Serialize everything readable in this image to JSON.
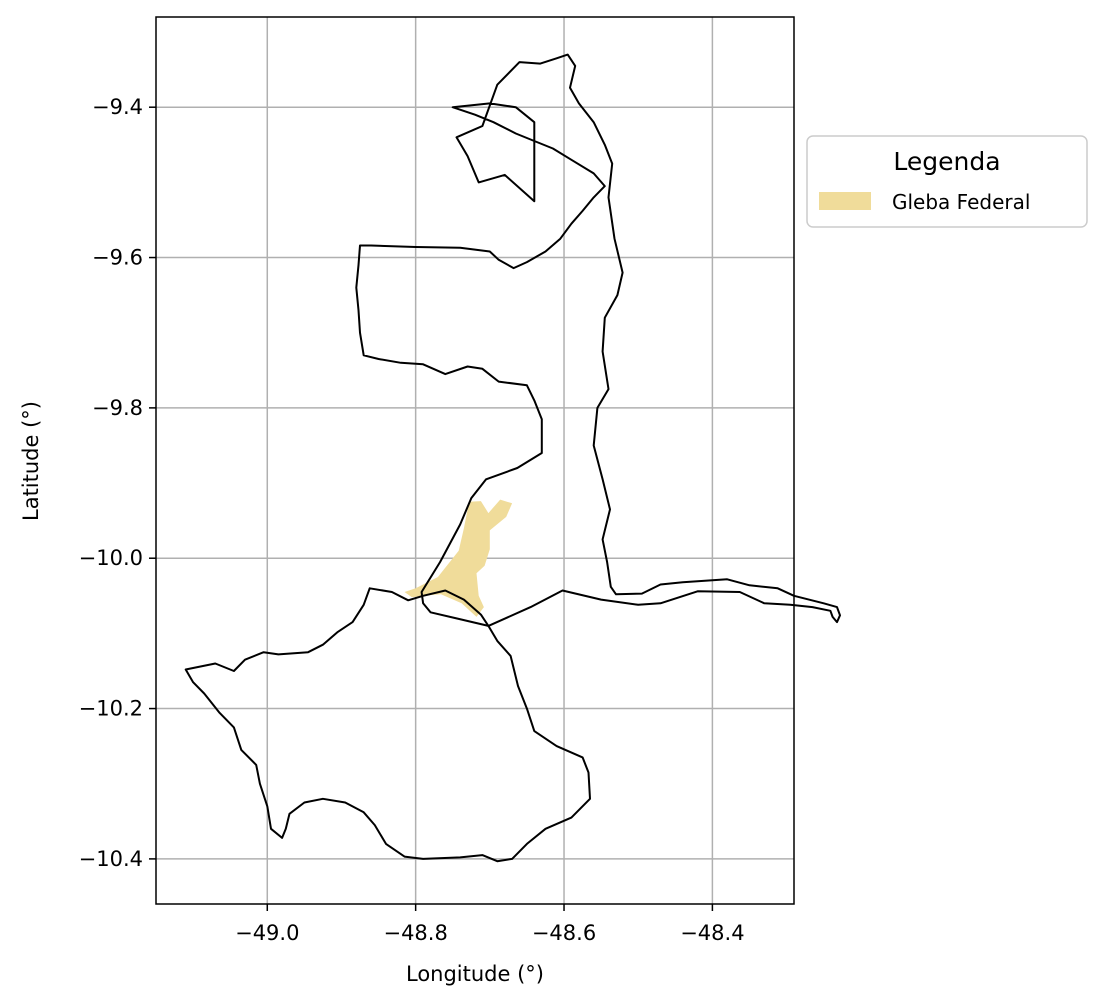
{
  "chart_data": {
    "type": "map",
    "xlabel": "Longitude (°)",
    "ylabel": "Latitude (°)",
    "xlim": [
      -49.15,
      -48.29
    ],
    "ylim": [
      -10.46,
      -9.28
    ],
    "x_ticks": [
      -49.0,
      -48.8,
      -48.6,
      -48.4
    ],
    "y_ticks": [
      -9.4,
      -9.6,
      -9.8,
      -10.0,
      -10.2,
      -10.4
    ],
    "x_tick_labels": [
      "−49.0",
      "−48.8",
      "−48.6",
      "−48.4"
    ],
    "y_tick_labels": [
      "−9.4",
      "−9.6",
      "−9.8",
      "−10.0",
      "−10.2",
      "−10.4"
    ],
    "grid": true,
    "legend": {
      "title": "Legenda",
      "placement": "outside right, top",
      "entries": [
        {
          "label": "Gleba Federal",
          "color": "#f0dc9a"
        }
      ]
    },
    "layers": [
      {
        "name": "Municipal boundaries",
        "style": "outline",
        "color": "#000000",
        "features": [
          {
            "part": "north",
            "coordinates": [
              [
                -48.64,
                -9.525
              ],
              [
                -48.68,
                -9.49
              ],
              [
                -48.715,
                -9.5
              ],
              [
                -48.73,
                -9.465
              ],
              [
                -48.745,
                -9.44
              ],
              [
                -48.71,
                -9.425
              ],
              [
                -48.69,
                -9.37
              ],
              [
                -48.66,
                -9.34
              ],
              [
                -48.632,
                -9.342
              ],
              [
                -48.61,
                -9.335
              ],
              [
                -48.595,
                -9.33
              ],
              [
                -48.585,
                -9.345
              ],
              [
                -48.592,
                -9.374
              ],
              [
                -48.58,
                -9.395
              ],
              [
                -48.56,
                -9.42
              ],
              [
                -48.545,
                -9.45
              ],
              [
                -48.535,
                -9.475
              ],
              [
                -48.54,
                -9.52
              ],
              [
                -48.532,
                -9.575
              ],
              [
                -48.521,
                -9.62
              ],
              [
                -48.528,
                -9.65
              ],
              [
                -48.545,
                -9.68
              ],
              [
                -48.548,
                -9.725
              ],
              [
                -48.54,
                -9.775
              ],
              [
                -48.555,
                -9.8
              ],
              [
                -48.56,
                -9.85
              ],
              [
                -48.548,
                -9.895
              ],
              [
                -48.538,
                -9.935
              ],
              [
                -48.548,
                -9.975
              ],
              [
                -48.542,
                -10.005
              ],
              [
                -48.537,
                -10.038
              ],
              [
                -48.53,
                -10.048
              ],
              [
                -48.495,
                -10.047
              ],
              [
                -48.47,
                -10.035
              ],
              [
                -48.44,
                -10.032
              ],
              [
                -48.41,
                -10.03
              ],
              [
                -48.38,
                -10.028
              ],
              [
                -48.35,
                -10.036
              ],
              [
                -48.312,
                -10.04
              ],
              [
                -48.29,
                -10.05
              ],
              [
                -48.25,
                -10.06
              ],
              [
                -48.232,
                -10.065
              ],
              [
                -48.228,
                -10.076
              ],
              [
                -48.232,
                -10.085
              ],
              [
                -48.238,
                -10.078
              ],
              [
                -48.241,
                -10.07
              ],
              [
                -48.265,
                -10.065
              ],
              [
                -48.295,
                -10.062
              ],
              [
                -48.33,
                -10.06
              ],
              [
                -48.363,
                -10.045
              ],
              [
                -48.42,
                -10.044
              ],
              [
                -48.47,
                -10.06
              ],
              [
                -48.5,
                -10.062
              ],
              [
                -48.55,
                -10.055
              ],
              [
                -48.602,
                -10.043
              ],
              [
                -48.645,
                -10.065
              ],
              [
                -48.702,
                -10.09
              ],
              [
                -48.745,
                -10.08
              ],
              [
                -48.78,
                -10.072
              ],
              [
                -48.79,
                -10.06
              ],
              [
                -48.792,
                -10.045
              ],
              [
                -48.767,
                -10.005
              ],
              [
                -48.74,
                -9.955
              ],
              [
                -48.725,
                -9.92
              ],
              [
                -48.705,
                -9.895
              ],
              [
                -48.663,
                -9.88
              ],
              [
                -48.63,
                -9.86
              ],
              [
                -48.63,
                -9.815
              ],
              [
                -48.64,
                -9.79
              ],
              [
                -48.65,
                -9.77
              ],
              [
                -48.688,
                -9.765
              ],
              [
                -48.71,
                -9.748
              ],
              [
                -48.73,
                -9.745
              ],
              [
                -48.76,
                -9.755
              ],
              [
                -48.79,
                -9.742
              ],
              [
                -48.82,
                -9.74
              ],
              [
                -48.85,
                -9.735
              ],
              [
                -48.87,
                -9.73
              ],
              [
                -48.875,
                -9.7
              ],
              [
                -48.877,
                -9.67
              ],
              [
                -48.88,
                -9.64
              ],
              [
                -48.877,
                -9.61
              ],
              [
                -48.875,
                -9.584
              ],
              [
                -48.86,
                -9.584
              ],
              [
                -48.8,
                -9.586
              ],
              [
                -48.74,
                -9.587
              ],
              [
                -48.7,
                -9.592
              ],
              [
                -48.688,
                -9.603
              ],
              [
                -48.668,
                -9.614
              ],
              [
                -48.65,
                -9.606
              ],
              [
                -48.625,
                -9.592
              ],
              [
                -48.605,
                -9.575
              ],
              [
                -48.59,
                -9.555
              ],
              [
                -48.575,
                -9.538
              ],
              [
                -48.56,
                -9.52
              ],
              [
                -48.545,
                -9.505
              ],
              [
                -48.56,
                -9.488
              ],
              [
                -48.59,
                -9.47
              ],
              [
                -48.615,
                -9.455
              ],
              [
                -48.64,
                -9.445
              ],
              [
                -48.665,
                -9.435
              ],
              [
                -48.695,
                -9.42
              ],
              [
                -48.72,
                -9.41
              ],
              [
                -48.75,
                -9.4
              ],
              [
                -48.7,
                -9.395
              ],
              [
                -48.665,
                -9.4
              ],
              [
                -48.64,
                -9.42
              ],
              [
                -48.64,
                -9.525
              ]
            ]
          },
          {
            "part": "south",
            "coordinates": [
              [
                -49.11,
                -10.148
              ],
              [
                -49.07,
                -10.14
              ],
              [
                -49.045,
                -10.15
              ],
              [
                -49.03,
                -10.135
              ],
              [
                -49.005,
                -10.125
              ],
              [
                -48.985,
                -10.128
              ],
              [
                -48.945,
                -10.125
              ],
              [
                -48.925,
                -10.115
              ],
              [
                -48.905,
                -10.098
              ],
              [
                -48.885,
                -10.085
              ],
              [
                -48.87,
                -10.062
              ],
              [
                -48.862,
                -10.04
              ],
              [
                -48.832,
                -10.045
              ],
              [
                -48.81,
                -10.056
              ],
              [
                -48.79,
                -10.05
              ],
              [
                -48.76,
                -10.043
              ],
              [
                -48.735,
                -10.055
              ],
              [
                -48.712,
                -10.075
              ],
              [
                -48.702,
                -10.09
              ],
              [
                -48.69,
                -10.11
              ],
              [
                -48.672,
                -10.13
              ],
              [
                -48.662,
                -10.17
              ],
              [
                -48.65,
                -10.2
              ],
              [
                -48.64,
                -10.23
              ],
              [
                -48.61,
                -10.25
              ],
              [
                -48.575,
                -10.265
              ],
              [
                -48.567,
                -10.285
              ],
              [
                -48.565,
                -10.32
              ],
              [
                -48.59,
                -10.345
              ],
              [
                -48.625,
                -10.36
              ],
              [
                -48.65,
                -10.38
              ],
              [
                -48.67,
                -10.4
              ],
              [
                -48.69,
                -10.403
              ],
              [
                -48.71,
                -10.395
              ],
              [
                -48.74,
                -10.398
              ],
              [
                -48.79,
                -10.4
              ],
              [
                -48.815,
                -10.397
              ],
              [
                -48.84,
                -10.38
              ],
              [
                -48.855,
                -10.355
              ],
              [
                -48.87,
                -10.338
              ],
              [
                -48.895,
                -10.325
              ],
              [
                -48.925,
                -10.32
              ],
              [
                -48.95,
                -10.325
              ],
              [
                -48.97,
                -10.34
              ],
              [
                -48.975,
                -10.36
              ],
              [
                -48.98,
                -10.372
              ],
              [
                -48.995,
                -10.36
              ],
              [
                -49.0,
                -10.33
              ],
              [
                -49.01,
                -10.3
              ],
              [
                -49.015,
                -10.275
              ],
              [
                -49.035,
                -10.255
              ],
              [
                -49.045,
                -10.225
              ],
              [
                -49.065,
                -10.205
              ],
              [
                -49.085,
                -10.18
              ],
              [
                -49.1,
                -10.165
              ],
              [
                -49.11,
                -10.148
              ]
            ]
          }
        ]
      },
      {
        "name": "Gleba Federal",
        "style": "fill",
        "color": "#f0dc9a",
        "coordinates": [
          [
            -48.728,
            -9.925
          ],
          [
            -48.712,
            -9.924
          ],
          [
            -48.702,
            -9.94
          ],
          [
            -48.686,
            -9.922
          ],
          [
            -48.67,
            -9.927
          ],
          [
            -48.678,
            -9.945
          ],
          [
            -48.7,
            -9.963
          ],
          [
            -48.7,
            -9.988
          ],
          [
            -48.707,
            -10.01
          ],
          [
            -48.718,
            -10.02
          ],
          [
            -48.715,
            -10.05
          ],
          [
            -48.708,
            -10.065
          ],
          [
            -48.718,
            -10.078
          ],
          [
            -48.738,
            -10.06
          ],
          [
            -48.766,
            -10.048
          ],
          [
            -48.79,
            -10.05
          ],
          [
            -48.805,
            -10.052
          ],
          [
            -48.815,
            -10.045
          ],
          [
            -48.8,
            -10.04
          ],
          [
            -48.77,
            -10.025
          ],
          [
            -48.742,
            -9.99
          ],
          [
            -48.735,
            -9.96
          ],
          [
            -48.728,
            -9.925
          ]
        ]
      }
    ]
  }
}
